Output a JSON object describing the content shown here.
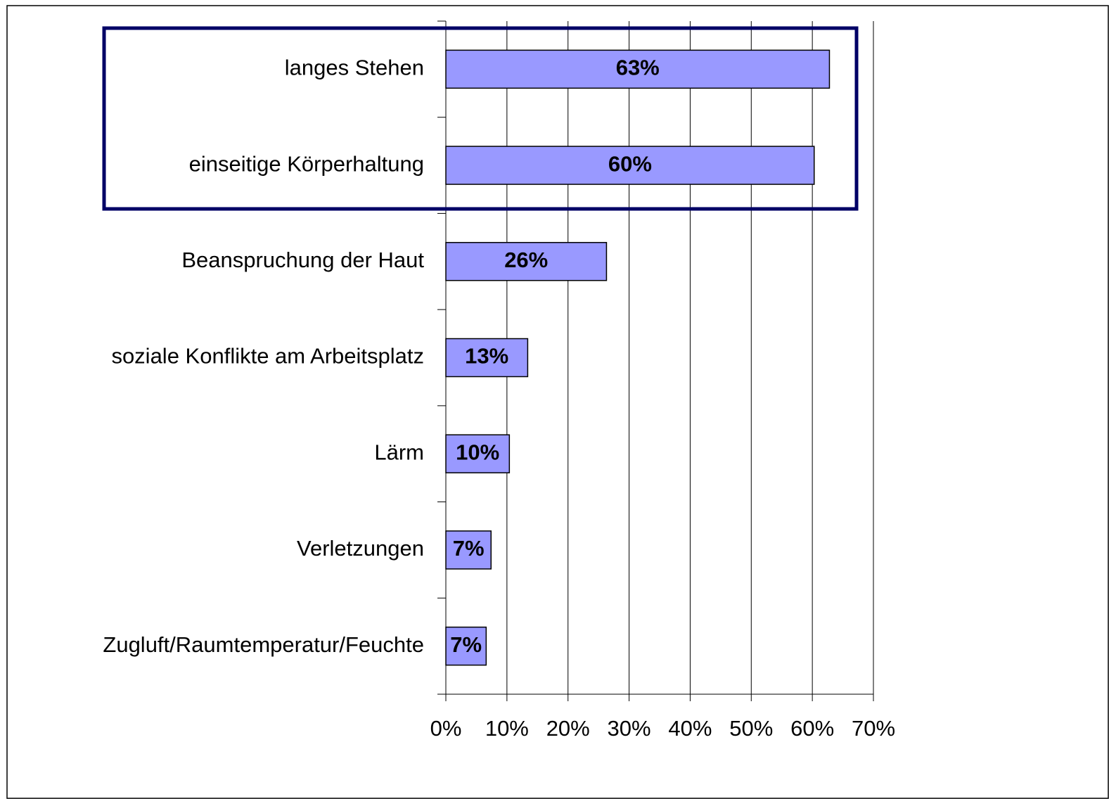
{
  "chart_data": {
    "type": "bar",
    "orientation": "horizontal",
    "categories": [
      "langes Stehen",
      "einseitige Körperhaltung",
      "Beanspruchung der Haut",
      "soziale Konflikte am Arbeitsplatz",
      "Lärm",
      "Verletzungen",
      "Zugluft/Raumtemperatur/Feuchte"
    ],
    "values": [
      62.8,
      60.3,
      26.3,
      13.4,
      10.4,
      7.4,
      6.6
    ],
    "value_labels": [
      "63%",
      "60%",
      "26%",
      "13%",
      "10%",
      "7%",
      "7%"
    ],
    "color": "#9999ff",
    "xlim": [
      0,
      70
    ],
    "xticks": [
      {
        "value": 0,
        "label": "0%"
      },
      {
        "value": 10,
        "label": "10%"
      },
      {
        "value": 20,
        "label": "20%"
      },
      {
        "value": 30,
        "label": "30%"
      },
      {
        "value": 40,
        "label": "40%"
      },
      {
        "value": 50,
        "label": "50%"
      },
      {
        "value": 60,
        "label": "60%"
      },
      {
        "value": 70,
        "label": "70%"
      }
    ],
    "grid": true
  }
}
